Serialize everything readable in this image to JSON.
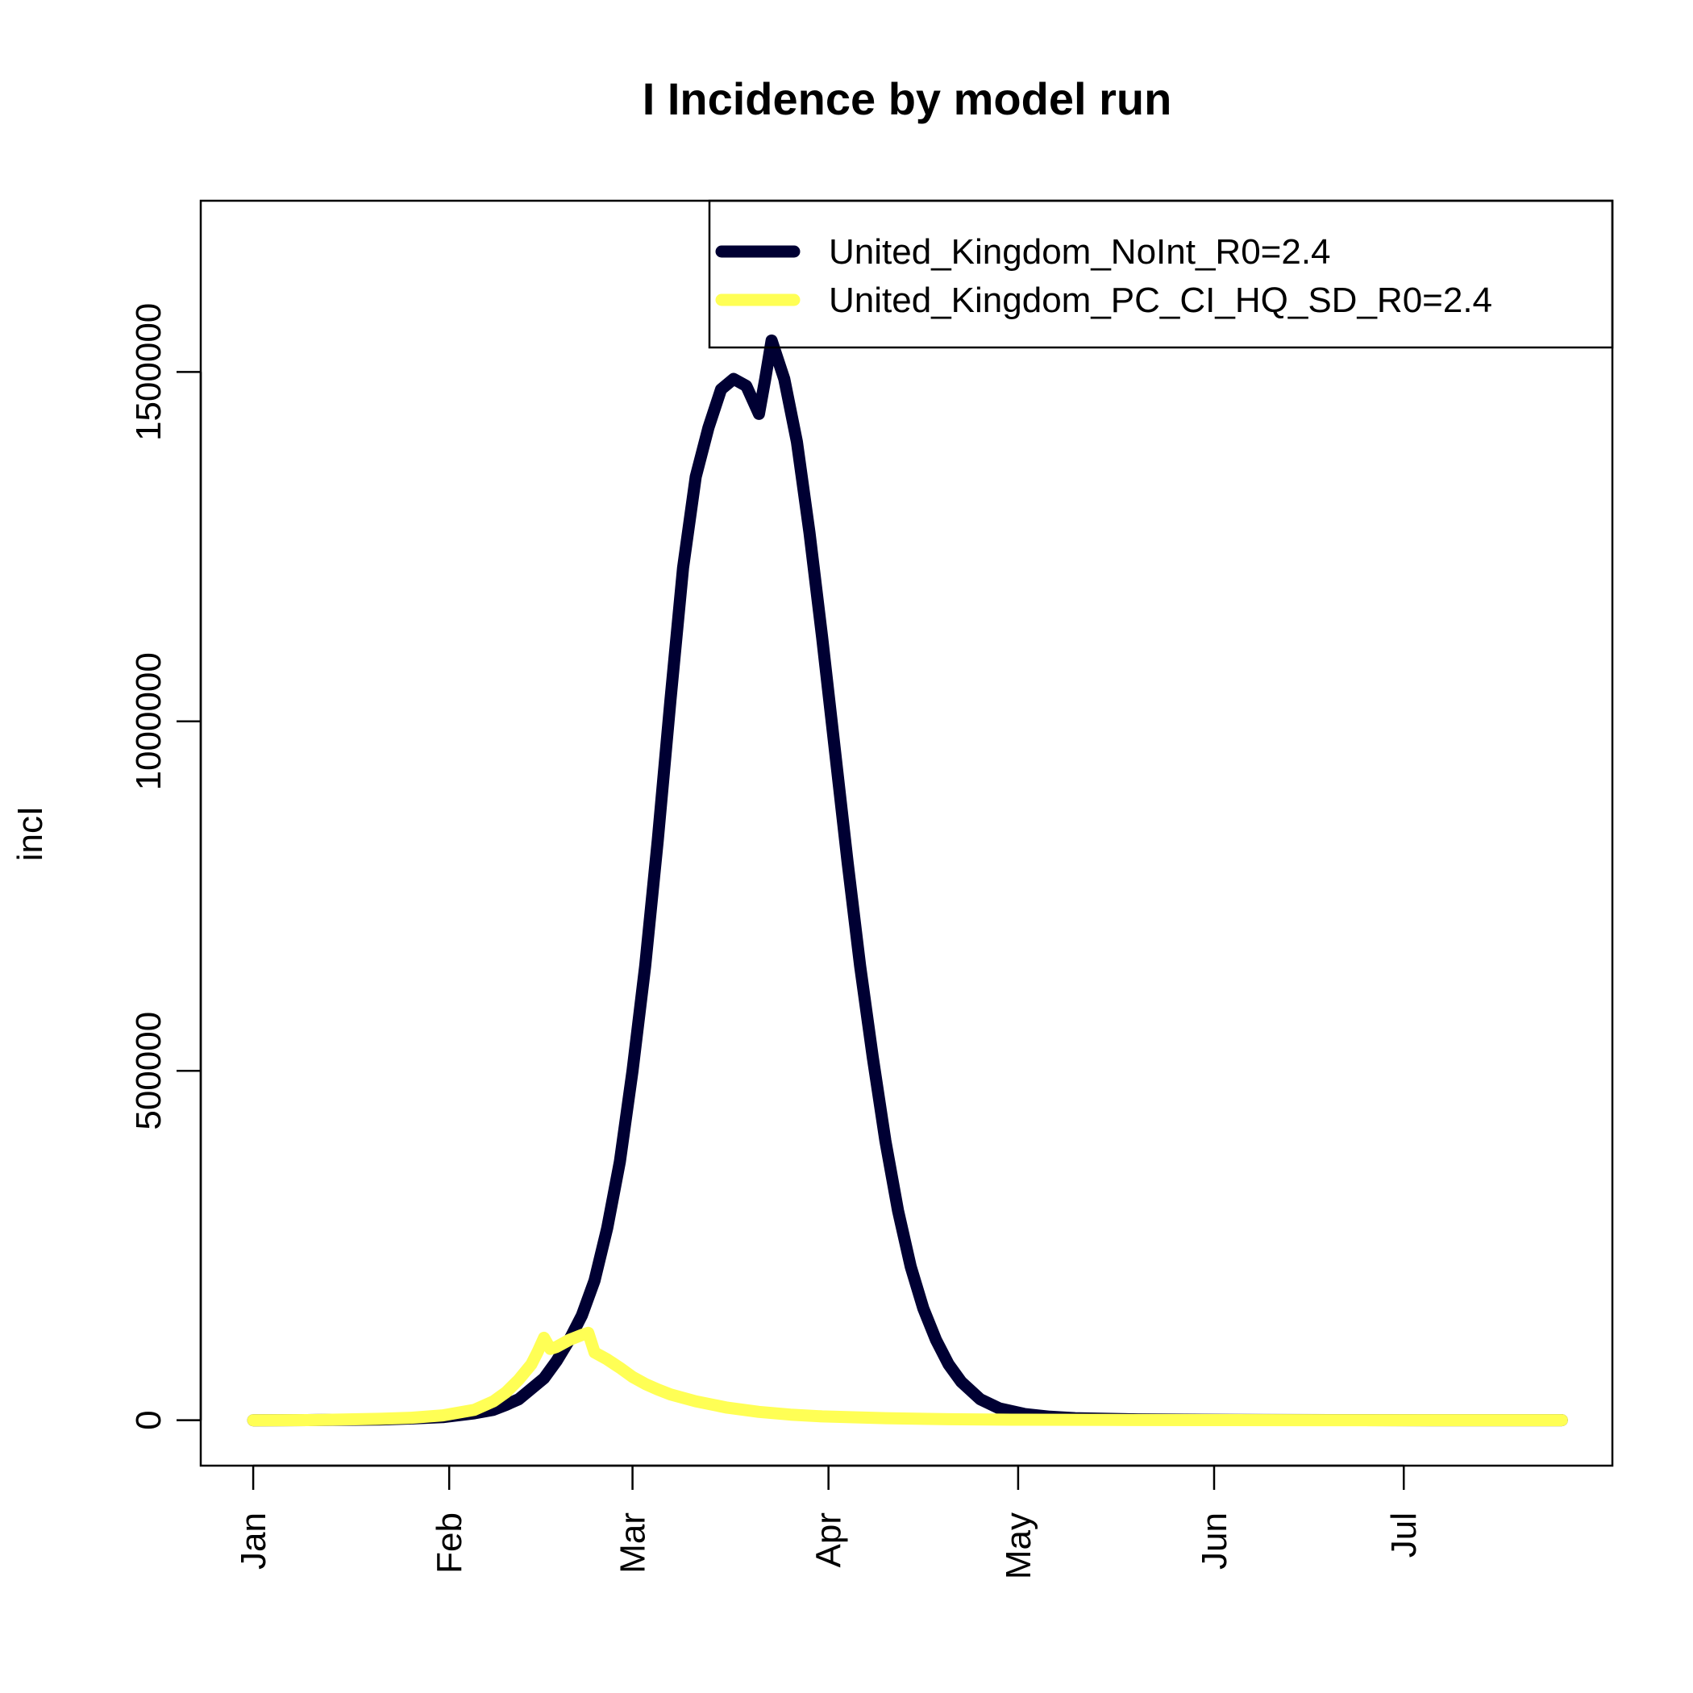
{
  "chart_data": {
    "type": "line",
    "title": "I Incidence by model run",
    "xlabel": "",
    "ylabel": "incI",
    "x_ticks": [
      {
        "label": "Jan",
        "day": 0
      },
      {
        "label": "Feb",
        "day": 31
      },
      {
        "label": "Mar",
        "day": 60
      },
      {
        "label": "Apr",
        "day": 91
      },
      {
        "label": "May",
        "day": 121
      },
      {
        "label": "Jun",
        "day": 152
      },
      {
        "label": "Jul",
        "day": 182
      }
    ],
    "y_ticks": [
      {
        "label": "0",
        "value": 0
      },
      {
        "label": "500000",
        "value": 500000
      },
      {
        "label": "1000000",
        "value": 1000000
      },
      {
        "label": "1500000",
        "value": 1500000
      }
    ],
    "xlim": [
      -8.3,
      215
    ],
    "ylim": [
      -65000,
      1745000
    ],
    "legend_position": "top-right",
    "grid": false,
    "series": [
      {
        "name": "United_Kingdom_NoInt_R0=2.4",
        "color": "#000033",
        "points": [
          [
            0,
            0
          ],
          [
            10,
            300
          ],
          [
            20,
            1000
          ],
          [
            25,
            2500
          ],
          [
            30,
            4500
          ],
          [
            35,
            10000
          ],
          [
            38,
            15000
          ],
          [
            40,
            22000
          ],
          [
            42,
            30000
          ],
          [
            44,
            45000
          ],
          [
            46,
            60000
          ],
          [
            48,
            85000
          ],
          [
            50,
            115000
          ],
          [
            52,
            150000
          ],
          [
            54,
            200000
          ],
          [
            56,
            275000
          ],
          [
            58,
            370000
          ],
          [
            60,
            500000
          ],
          [
            62,
            650000
          ],
          [
            64,
            830000
          ],
          [
            66,
            1030000
          ],
          [
            68,
            1220000
          ],
          [
            70,
            1350000
          ],
          [
            72,
            1420000
          ],
          [
            74,
            1475000
          ],
          [
            76,
            1490000
          ],
          [
            78,
            1480000
          ],
          [
            80,
            1440000
          ],
          [
            81,
            1490000
          ],
          [
            82,
            1545000
          ],
          [
            84,
            1490000
          ],
          [
            86,
            1400000
          ],
          [
            88,
            1270000
          ],
          [
            90,
            1120000
          ],
          [
            92,
            960000
          ],
          [
            94,
            800000
          ],
          [
            96,
            650000
          ],
          [
            98,
            520000
          ],
          [
            100,
            400000
          ],
          [
            102,
            300000
          ],
          [
            104,
            220000
          ],
          [
            106,
            160000
          ],
          [
            108,
            115000
          ],
          [
            110,
            80000
          ],
          [
            112,
            55000
          ],
          [
            115,
            30000
          ],
          [
            118,
            17000
          ],
          [
            122,
            9000
          ],
          [
            126,
            5000
          ],
          [
            130,
            3000
          ],
          [
            140,
            1200
          ],
          [
            150,
            600
          ],
          [
            160,
            300
          ],
          [
            175,
            150
          ],
          [
            190,
            80
          ],
          [
            207,
            50
          ]
        ]
      },
      {
        "name": "United_Kingdom_PC_CI_HQ_SD_R0=2.4",
        "color": "#ffff55",
        "points": [
          [
            0,
            0
          ],
          [
            10,
            300
          ],
          [
            20,
            2000
          ],
          [
            25,
            3500
          ],
          [
            30,
            7000
          ],
          [
            35,
            15000
          ],
          [
            38,
            27000
          ],
          [
            40,
            40000
          ],
          [
            42,
            58000
          ],
          [
            44,
            80000
          ],
          [
            45,
            98000
          ],
          [
            46,
            118000
          ],
          [
            47,
            102000
          ],
          [
            48,
            105000
          ],
          [
            50,
            115000
          ],
          [
            52,
            122000
          ],
          [
            53,
            125000
          ],
          [
            54,
            97000
          ],
          [
            56,
            87000
          ],
          [
            58,
            75000
          ],
          [
            60,
            62000
          ],
          [
            62,
            52000
          ],
          [
            64,
            44000
          ],
          [
            66,
            37000
          ],
          [
            70,
            27000
          ],
          [
            75,
            18000
          ],
          [
            80,
            12000
          ],
          [
            85,
            8000
          ],
          [
            90,
            5500
          ],
          [
            100,
            3000
          ],
          [
            110,
            1500
          ],
          [
            120,
            800
          ],
          [
            135,
            400
          ],
          [
            150,
            200
          ],
          [
            170,
            100
          ],
          [
            190,
            50
          ],
          [
            207,
            30
          ]
        ]
      }
    ]
  }
}
